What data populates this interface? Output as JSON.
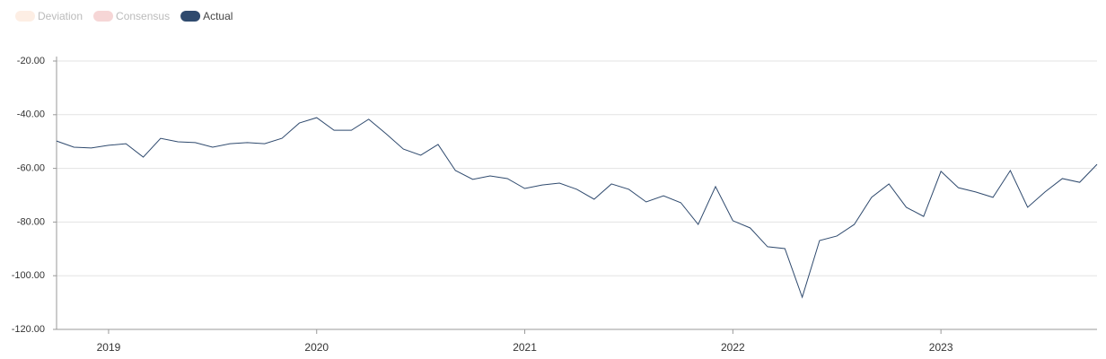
{
  "chart_data": {
    "type": "line",
    "categories": [
      null,
      null,
      null,
      "2019",
      null,
      null,
      null,
      null,
      null,
      null,
      null,
      null,
      null,
      null,
      null,
      "2020",
      null,
      null,
      null,
      null,
      null,
      null,
      null,
      null,
      null,
      null,
      null,
      "2021",
      null,
      null,
      null,
      null,
      null,
      null,
      null,
      null,
      null,
      null,
      null,
      "2022",
      null,
      null,
      null,
      null,
      null,
      null,
      null,
      null,
      null,
      null,
      null,
      "2023",
      null,
      null,
      null,
      null,
      null,
      null,
      null,
      null,
      null
    ],
    "series": [
      {
        "name": "Deviation",
        "color": "#fdeee4",
        "visible": false
      },
      {
        "name": "Consensus",
        "color": "#f6d6d6",
        "visible": false
      },
      {
        "name": "Actual",
        "color": "#2f4a6e",
        "visible": true,
        "values": [
          -49.8,
          -52.1,
          -52.4,
          -51.4,
          -50.8,
          -55.8,
          -48.8,
          -50.1,
          -50.4,
          -52.1,
          -50.8,
          -50.4,
          -50.8,
          -48.8,
          -43.1,
          -41.1,
          -45.8,
          -45.8,
          -41.7,
          -47.1,
          -52.8,
          -55.1,
          -51.1,
          -60.8,
          -64.1,
          -62.8,
          -63.8,
          -67.5,
          -66.2,
          -65.5,
          -67.8,
          -71.5,
          -65.8,
          -67.8,
          -72.5,
          -70.2,
          -72.8,
          -80.9,
          -66.8,
          -79.5,
          -82.2,
          -89.2,
          -89.9,
          -108.0,
          -86.9,
          -85.2,
          -80.9,
          -70.8,
          -65.8,
          -74.5,
          -77.9,
          -61.1,
          -67.2,
          -68.8,
          -70.8,
          -60.8,
          -74.5,
          -68.8,
          -63.8,
          -65.2,
          -58.5
        ]
      }
    ],
    "ylim": [
      -120,
      -20
    ],
    "yticks": [
      {
        "value": -120,
        "label": "-120.00"
      },
      {
        "value": -100,
        "label": "-100.00"
      },
      {
        "value": -80,
        "label": "-80.00"
      },
      {
        "value": -60,
        "label": "-60.00"
      },
      {
        "value": -40,
        "label": "-40.00"
      },
      {
        "value": -20,
        "label": "-20.00"
      }
    ],
    "grid": true,
    "legend": "top-left"
  }
}
